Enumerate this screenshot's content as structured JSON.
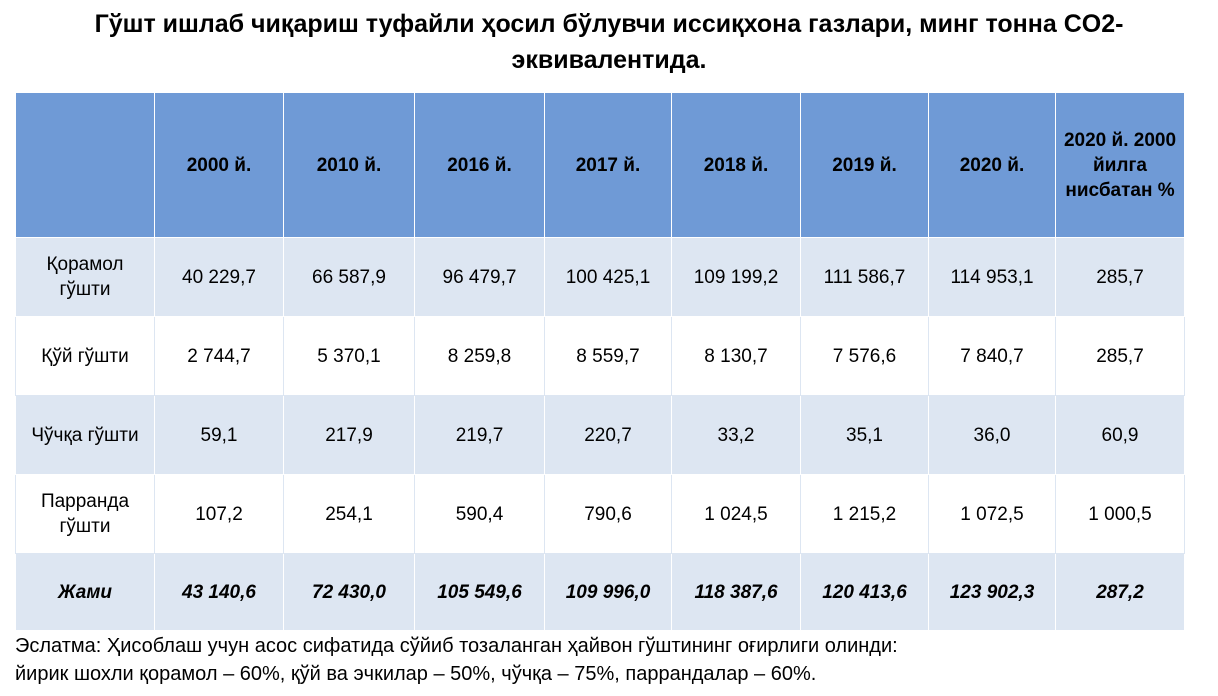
{
  "title": "Гўшт ишлаб чиқариш туфайли ҳосил бўлувчи иссиқхона газлари, минг тонна CO2-эквивалентида.",
  "table": {
    "headers": [
      "",
      "2000 й.",
      "2010 й.",
      "2016 й.",
      "2017 й.",
      "2018 й.",
      "2019 й.",
      "2020 й.",
      "2020 й. 2000 йилга нисбатан %"
    ],
    "rows": [
      {
        "label": "Қорамол гўшти",
        "values": [
          "40 229,7",
          "66 587,9",
          "96 479,7",
          "100 425,1",
          "109 199,2",
          "111 586,7",
          "114 953,1",
          "285,7"
        ]
      },
      {
        "label": "Қўй гўшти",
        "values": [
          "2 744,7",
          "5 370,1",
          "8 259,8",
          "8 559,7",
          "8 130,7",
          "7 576,6",
          "7 840,7",
          "285,7"
        ]
      },
      {
        "label": "Чўчқа гўшти",
        "values": [
          "59,1",
          "217,9",
          "219,7",
          "220,7",
          "33,2",
          "35,1",
          "36,0",
          "60,9"
        ]
      },
      {
        "label": "Парранда гўшти",
        "values": [
          "107,2",
          "254,1",
          "590,4",
          "790,6",
          "1 024,5",
          "1 215,2",
          "1 072,5",
          "1 000,5"
        ]
      }
    ],
    "total": {
      "label": "Жами",
      "values": [
        "43 140,6",
        "72 430,0",
        "105 549,6",
        "109 996,0",
        "118 387,6",
        "120 413,6",
        "123 902,3",
        "287,2"
      ]
    }
  },
  "note": {
    "line1": "Эслатма: Ҳисоблаш учун асос сифатида сўйиб тозаланган ҳайвон гўштининг оғирлиги олинди:",
    "line2": "йирик шохли қорамол – 60%, қўй ва эчкилар – 50%, чўчқа – 75%, паррандалар – 60%."
  }
}
